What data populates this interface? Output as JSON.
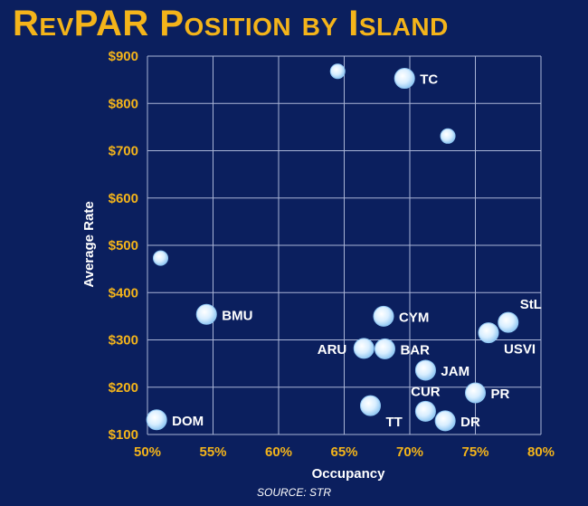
{
  "title": "RevPAR Position by Island",
  "source": "SOURCE: STR",
  "colors": {
    "background": "#0b1f5e",
    "title": "#f4b41a",
    "tick_labels": "#f4b41a",
    "grid": "#a9b4d6",
    "point_fill": "#cfe9ff",
    "point_edge": "#8fc6f2",
    "text": "#ffffff"
  },
  "chart_data": {
    "type": "scatter",
    "title": "RevPAR Position by Island",
    "xlabel": "Occupancy",
    "ylabel": "Average Rate",
    "xlim": [
      0.5,
      0.8
    ],
    "ylim": [
      100,
      900
    ],
    "x_ticks": [
      "50%",
      "55%",
      "60%",
      "65%",
      "70%",
      "75%",
      "80%"
    ],
    "x_tick_values": [
      0.5,
      0.55,
      0.6,
      0.65,
      0.7,
      0.75,
      0.8
    ],
    "y_ticks": [
      "$100",
      "$200",
      "$300",
      "$400",
      "$500",
      "$600",
      "$700",
      "$800",
      "$900"
    ],
    "y_tick_values": [
      100,
      200,
      300,
      400,
      500,
      600,
      700,
      800,
      900
    ],
    "grid": true,
    "points": [
      {
        "label": "TC",
        "x": 0.696,
        "y": 853,
        "size": "large",
        "label_pos": "right"
      },
      {
        "label": "",
        "x": 0.645,
        "y": 868,
        "size": "small"
      },
      {
        "label": "",
        "x": 0.729,
        "y": 731,
        "size": "small"
      },
      {
        "label": "",
        "x": 0.51,
        "y": 473,
        "size": "small"
      },
      {
        "label": "BMU",
        "x": 0.545,
        "y": 354,
        "size": "large",
        "label_pos": "right"
      },
      {
        "label": "CYM",
        "x": 0.68,
        "y": 350,
        "size": "large",
        "label_pos": "right"
      },
      {
        "label": "StL",
        "x": 0.775,
        "y": 337,
        "size": "large",
        "label_pos": "above-right"
      },
      {
        "label": "USVI",
        "x": 0.76,
        "y": 315,
        "size": "large",
        "label_pos": "below-right"
      },
      {
        "label": "ARU",
        "x": 0.665,
        "y": 282,
        "size": "large",
        "label_pos": "left"
      },
      {
        "label": "BAR",
        "x": 0.681,
        "y": 281,
        "size": "large",
        "label_pos": "right"
      },
      {
        "label": "JAM",
        "x": 0.712,
        "y": 236,
        "size": "large",
        "label_pos": "right"
      },
      {
        "label": "PR",
        "x": 0.75,
        "y": 188,
        "size": "large",
        "label_pos": "right"
      },
      {
        "label": "CUR",
        "x": 0.712,
        "y": 149,
        "size": "large",
        "label_pos": "above"
      },
      {
        "label": "TT",
        "x": 0.67,
        "y": 161,
        "size": "large",
        "label_pos": "below-right"
      },
      {
        "label": "DR",
        "x": 0.727,
        "y": 129,
        "size": "large",
        "label_pos": "right"
      },
      {
        "label": "DOM",
        "x": 0.507,
        "y": 131,
        "size": "large",
        "label_pos": "right"
      }
    ]
  }
}
